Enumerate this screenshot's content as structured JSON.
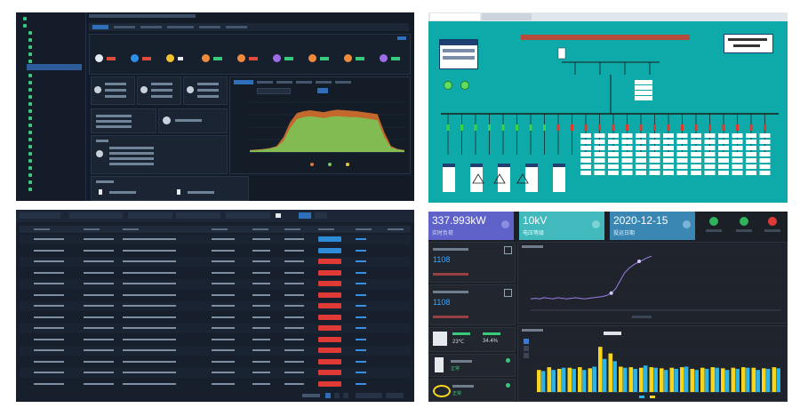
{
  "tr": {
    "kw_value": "337.993kW",
    "kw_label": "实时负荷",
    "kv_value": "10kV",
    "kv_label": "电压等级",
    "date_value": "2020-12-15",
    "date_label": "投运日期",
    "val1": "1108",
    "val2": "1108",
    "temp": "23℃",
    "humid": "34.4%",
    "status1": "正常",
    "status2": "正常"
  },
  "colors": {
    "green": "#37c97c",
    "blue_btn": "#2e8bd8",
    "red_btn": "#e03a36",
    "teal": "#0eaaa9",
    "yellow": "#f7d51c",
    "cyan": "#2bb5e6",
    "orange_area": "#e2762e",
    "green_area": "#7bc455"
  },
  "chart_data": [
    {
      "type": "area",
      "series": [
        {
          "values": [
            4,
            5,
            6,
            8,
            12,
            30,
            60,
            78,
            82,
            84,
            82,
            80,
            83,
            85,
            84,
            83,
            82,
            80,
            78,
            76,
            40,
            12,
            6,
            4
          ]
        },
        {
          "values": [
            3,
            4,
            5,
            7,
            10,
            22,
            48,
            66,
            70,
            72,
            70,
            68,
            71,
            72,
            71,
            70,
            70,
            68,
            66,
            64,
            30,
            9,
            5,
            3
          ]
        }
      ]
    },
    {
      "type": "line",
      "series": [
        {
          "values": [
            20,
            21,
            20,
            22,
            21,
            20,
            22,
            21,
            20,
            21,
            22,
            21,
            20,
            21,
            22,
            23,
            24,
            26,
            30,
            38,
            52,
            66,
            74,
            80,
            84,
            88,
            92,
            95
          ]
        }
      ]
    },
    {
      "type": "bar",
      "series": [
        {
          "values": [
            40,
            45,
            42,
            44,
            45,
            43,
            82,
            70,
            46,
            45,
            44,
            45,
            43,
            44,
            45,
            42,
            44,
            45,
            43,
            44,
            45,
            44,
            43,
            45
          ]
        },
        {
          "values": [
            38,
            40,
            44,
            42,
            40,
            46,
            60,
            56,
            44,
            42,
            48,
            44,
            40,
            42,
            46,
            40,
            42,
            44,
            40,
            42,
            44,
            40,
            42,
            43
          ]
        }
      ]
    }
  ]
}
